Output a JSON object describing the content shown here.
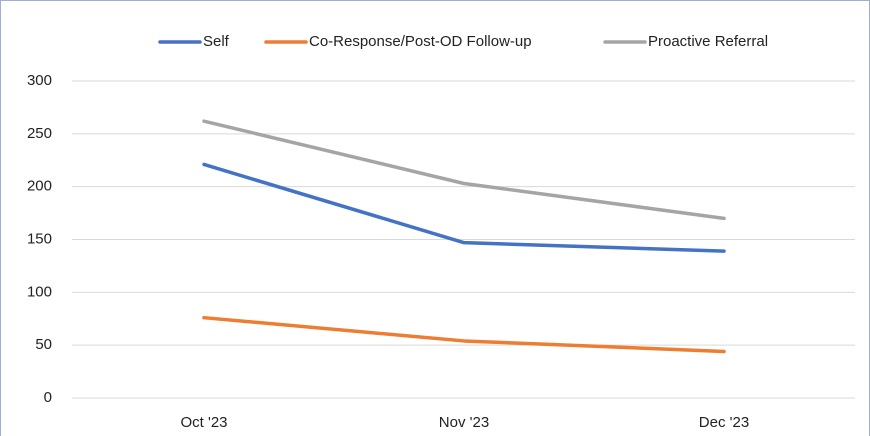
{
  "chart_data": {
    "type": "line",
    "categories": [
      "Oct '23",
      "Nov '23",
      "Dec '23"
    ],
    "series": [
      {
        "name": "Self",
        "color": "#4472c4",
        "values": [
          221,
          147,
          139
        ]
      },
      {
        "name": "Co-Response/Post-OD Follow-up",
        "color": "#ed7d31",
        "values": [
          76,
          54,
          44
        ]
      },
      {
        "name": "Proactive Referral",
        "color": "#a5a5a5",
        "values": [
          262,
          203,
          170
        ]
      }
    ],
    "ylim": [
      0,
      300
    ],
    "yticks": [
      0,
      50,
      100,
      150,
      200,
      250,
      300
    ],
    "grid": true,
    "legend": "top"
  }
}
